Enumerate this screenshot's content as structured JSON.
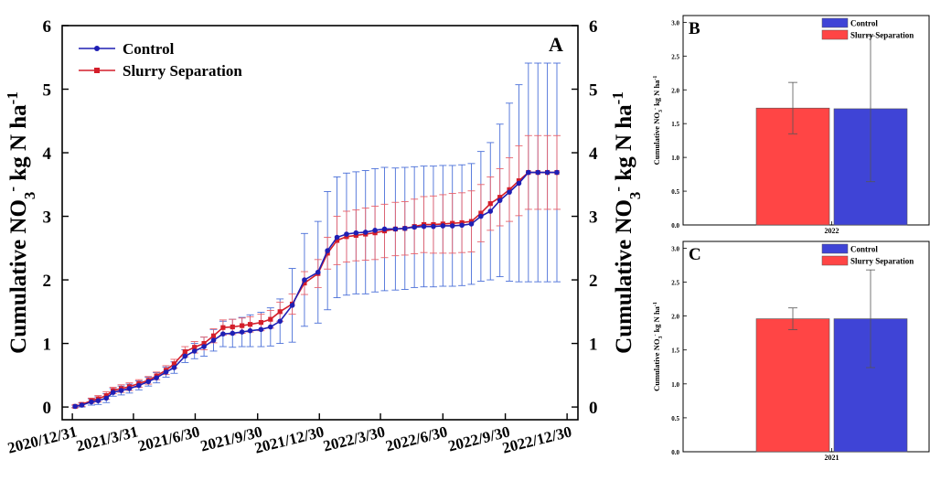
{
  "chart_data": [
    {
      "type": "line",
      "panel_label": "A",
      "ylabel_main": "Cumulative NO",
      "ylabel_sub": "3",
      "ylabel_sup": "-",
      "ylabel_rest": " kg N ha",
      "ylabel_exp": "-1",
      "ylim": [
        -0.2,
        6
      ],
      "yticks": [
        "0",
        "1",
        "2",
        "3",
        "4",
        "5",
        "6"
      ],
      "yticks_values": [
        0,
        1,
        2,
        3,
        4,
        5,
        6
      ],
      "xticks": [
        "2020/12/31",
        "2021/3/31",
        "2021/6/30",
        "2021/9/30",
        "2021/12/30",
        "2022/3/30",
        "2022/6/30",
        "2022/9/30",
        "2022/12/30"
      ],
      "xtick_days": [
        0,
        90,
        181,
        273,
        364,
        454,
        546,
        638,
        729
      ],
      "xlim_days": [
        -15,
        745
      ],
      "legend_placement": "top-left",
      "colors": {
        "control": "#1f1fb4",
        "control_err": "#4a6fd8",
        "slurry": "#d41e2a",
        "slurry_err": "#e8616b"
      },
      "series": [
        {
          "name": "Control",
          "x_days": [
            4,
            14,
            28,
            38,
            50,
            60,
            72,
            84,
            98,
            112,
            124,
            138,
            150,
            166,
            180,
            194,
            208,
            222,
            236,
            250,
            262,
            278,
            292,
            306,
            324,
            342,
            362,
            376,
            390,
            404,
            418,
            432,
            446,
            460,
            476,
            490,
            504,
            518,
            532,
            546,
            560,
            574,
            588,
            602,
            616,
            630,
            644,
            658,
            672,
            686,
            700,
            714
          ],
          "y": [
            0.01,
            0.03,
            0.08,
            0.1,
            0.14,
            0.23,
            0.26,
            0.29,
            0.34,
            0.4,
            0.46,
            0.55,
            0.62,
            0.8,
            0.88,
            0.95,
            1.05,
            1.15,
            1.16,
            1.18,
            1.2,
            1.22,
            1.26,
            1.35,
            1.6,
            2.0,
            2.12,
            2.46,
            2.67,
            2.72,
            2.74,
            2.75,
            2.78,
            2.8,
            2.8,
            2.81,
            2.83,
            2.84,
            2.84,
            2.85,
            2.85,
            2.86,
            2.88,
            3.0,
            3.08,
            3.25,
            3.38,
            3.52,
            3.69,
            3.69,
            3.69,
            3.69
          ],
          "err": [
            0.02,
            0.03,
            0.05,
            0.06,
            0.07,
            0.06,
            0.07,
            0.07,
            0.07,
            0.07,
            0.08,
            0.08,
            0.09,
            0.1,
            0.12,
            0.15,
            0.17,
            0.2,
            0.22,
            0.23,
            0.25,
            0.27,
            0.3,
            0.35,
            0.58,
            0.73,
            0.8,
            0.93,
            0.95,
            0.96,
            0.96,
            0.97,
            0.97,
            0.97,
            0.96,
            0.96,
            0.95,
            0.95,
            0.95,
            0.95,
            0.95,
            0.95,
            0.95,
            1.02,
            1.08,
            1.2,
            1.4,
            1.55,
            1.72,
            1.72,
            1.72,
            1.72
          ]
        },
        {
          "name": "Slurry Separation",
          "x_days": [
            4,
            14,
            28,
            38,
            50,
            60,
            72,
            84,
            98,
            112,
            124,
            138,
            150,
            166,
            180,
            194,
            208,
            222,
            236,
            250,
            262,
            278,
            292,
            306,
            324,
            342,
            362,
            376,
            390,
            404,
            418,
            432,
            446,
            460,
            476,
            490,
            504,
            518,
            532,
            546,
            560,
            574,
            588,
            602,
            616,
            630,
            644,
            658,
            672,
            686,
            700,
            714
          ],
          "y": [
            0.01,
            0.04,
            0.1,
            0.13,
            0.18,
            0.26,
            0.29,
            0.32,
            0.37,
            0.42,
            0.49,
            0.58,
            0.68,
            0.87,
            0.94,
            1.0,
            1.12,
            1.25,
            1.26,
            1.28,
            1.3,
            1.33,
            1.38,
            1.5,
            1.62,
            1.95,
            2.1,
            2.42,
            2.62,
            2.68,
            2.7,
            2.72,
            2.74,
            2.77,
            2.8,
            2.81,
            2.84,
            2.87,
            2.87,
            2.88,
            2.89,
            2.9,
            2.92,
            3.05,
            3.2,
            3.3,
            3.42,
            3.56,
            3.69,
            3.69,
            3.69,
            3.69
          ],
          "err": [
            0.02,
            0.03,
            0.04,
            0.05,
            0.06,
            0.05,
            0.06,
            0.06,
            0.06,
            0.06,
            0.06,
            0.07,
            0.07,
            0.08,
            0.09,
            0.1,
            0.11,
            0.12,
            0.12,
            0.12,
            0.12,
            0.13,
            0.14,
            0.15,
            0.16,
            0.18,
            0.22,
            0.25,
            0.38,
            0.4,
            0.4,
            0.41,
            0.42,
            0.42,
            0.42,
            0.42,
            0.43,
            0.44,
            0.45,
            0.46,
            0.47,
            0.47,
            0.48,
            0.45,
            0.42,
            0.45,
            0.5,
            0.55,
            0.58,
            0.58,
            0.58,
            0.58
          ]
        }
      ]
    },
    {
      "type": "bar",
      "panel_label": "B",
      "categories": [
        "2022"
      ],
      "ylim": [
        0,
        3.1
      ],
      "yticks": [
        "0.0",
        "0.5",
        "1.0",
        "1.5",
        "2.0",
        "2.5",
        "3.0"
      ],
      "yticks_values": [
        0,
        0.5,
        1,
        1.5,
        2,
        2.5,
        3
      ],
      "ylabel": "Cumulative NO3- kg N ha-1",
      "legend_placement": "top-right",
      "series": [
        {
          "name": "Slurry Separation",
          "value": 1.73,
          "err": 0.38,
          "color": "#ff4545"
        },
        {
          "name": "Control",
          "value": 1.72,
          "err": 1.08,
          "color": "#3f44d6"
        }
      ],
      "legend_order": [
        "Control",
        "Slurry Separation"
      ]
    },
    {
      "type": "bar",
      "panel_label": "C",
      "categories": [
        "2021"
      ],
      "ylim": [
        0,
        3.1
      ],
      "yticks": [
        "0.0",
        "0.5",
        "1.0",
        "1.5",
        "2.0",
        "2.5",
        "3.0"
      ],
      "yticks_values": [
        0,
        0.5,
        1,
        1.5,
        2,
        2.5,
        3
      ],
      "ylabel": "Cumulative NO3- kg N ha-1",
      "legend_placement": "top-right",
      "series": [
        {
          "name": "Slurry Separation",
          "value": 1.96,
          "err": 0.16,
          "color": "#ff4545"
        },
        {
          "name": "Control",
          "value": 1.96,
          "err": 0.72,
          "color": "#3f44d6"
        }
      ],
      "legend_order": [
        "Control",
        "Slurry Separation"
      ]
    }
  ]
}
